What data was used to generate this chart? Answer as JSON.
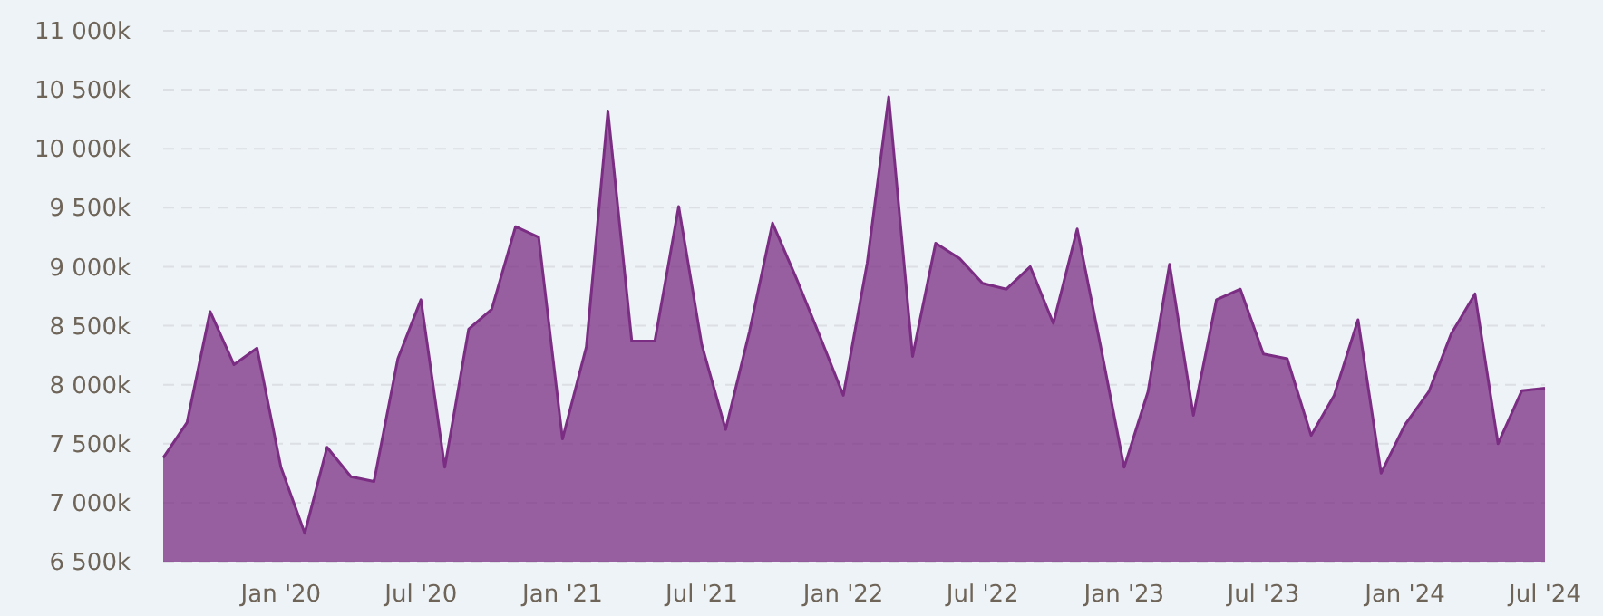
{
  "chart_data": {
    "type": "area",
    "x": [
      "2019-08",
      "2019-09",
      "2019-10",
      "2019-11",
      "2019-12",
      "2020-01",
      "2020-02",
      "2020-03",
      "2020-04",
      "2020-05",
      "2020-06",
      "2020-07",
      "2020-08",
      "2020-09",
      "2020-10",
      "2020-11",
      "2020-12",
      "2021-01",
      "2021-02",
      "2021-03",
      "2021-04",
      "2021-05",
      "2021-06",
      "2021-07",
      "2021-08",
      "2021-09",
      "2021-10",
      "2021-11",
      "2021-12",
      "2022-01",
      "2022-02",
      "2022-03",
      "2022-04",
      "2022-05",
      "2022-06",
      "2022-07",
      "2022-08",
      "2022-09",
      "2022-10",
      "2022-11",
      "2022-12",
      "2023-01",
      "2023-02",
      "2023-03",
      "2023-04",
      "2023-05",
      "2023-06",
      "2023-07",
      "2023-08",
      "2023-09",
      "2023-10",
      "2023-11",
      "2023-12",
      "2024-01",
      "2024-02",
      "2024-03",
      "2024-04",
      "2024-05",
      "2024-06",
      "2024-07"
    ],
    "series": [
      {
        "color": "#7b2d83",
        "values": [
          7380,
          7680,
          8620,
          8170,
          8310,
          7300,
          6740,
          7470,
          7220,
          7180,
          8220,
          8720,
          7300,
          8470,
          8640,
          9340,
          9250,
          7540,
          8320,
          10320,
          8370,
          8370,
          9510,
          8340,
          7620,
          8450,
          9370,
          8900,
          8420,
          7910,
          9030,
          10440,
          8240,
          9200,
          9070,
          8860,
          8810,
          9000,
          8520,
          9320,
          8340,
          7300,
          7940,
          9020,
          7740,
          8720,
          8810,
          8260,
          8220,
          7570,
          7910,
          8550,
          7250,
          7660,
          7940,
          8430,
          8770,
          7500,
          7950,
          7970
        ]
      }
    ],
    "xlim": [
      "2019-08",
      "2024-07"
    ],
    "xticks": [
      {
        "value": "2020-01",
        "label": "Jan '20"
      },
      {
        "value": "2020-07",
        "label": "Jul '20"
      },
      {
        "value": "2021-01",
        "label": "Jan '21"
      },
      {
        "value": "2021-07",
        "label": "Jul '21"
      },
      {
        "value": "2022-01",
        "label": "Jan '22"
      },
      {
        "value": "2022-07",
        "label": "Jul '22"
      },
      {
        "value": "2023-01",
        "label": "Jan '23"
      },
      {
        "value": "2023-07",
        "label": "Jul '23"
      },
      {
        "value": "2024-01",
        "label": "Jan '24"
      },
      {
        "value": "2024-07",
        "label": "Jul '24"
      }
    ],
    "ylim": [
      6500,
      11000
    ],
    "yticks": [
      {
        "value": 6500,
        "label": "6 500k"
      },
      {
        "value": 7000,
        "label": "7 000k"
      },
      {
        "value": 7500,
        "label": "7 500k"
      },
      {
        "value": 8000,
        "label": "8 000k"
      },
      {
        "value": 8500,
        "label": "8 500k"
      },
      {
        "value": 9000,
        "label": "9 000k"
      },
      {
        "value": 9500,
        "label": "9 500k"
      },
      {
        "value": 10000,
        "label": "10 000k"
      },
      {
        "value": 10500,
        "label": "10 500k"
      },
      {
        "value": 11000,
        "label": "11 000k"
      }
    ],
    "grid": "y"
  }
}
